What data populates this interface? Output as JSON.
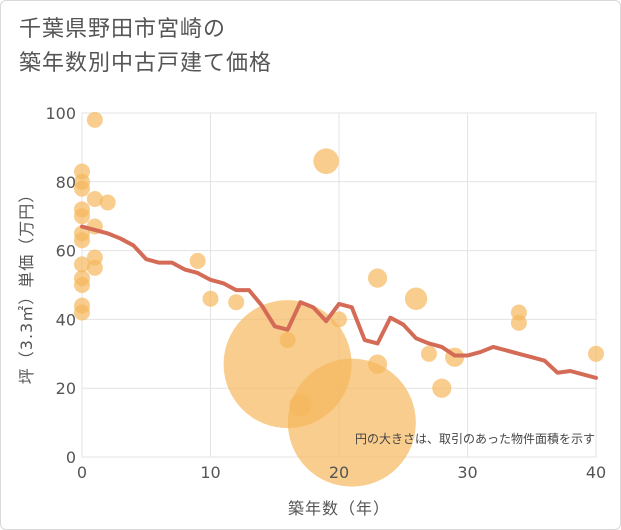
{
  "title_line1": "千葉県野田市宮崎の",
  "title_line2": "築年数別中古戸建て価格",
  "chart_data": {
    "type": "scatter",
    "xlabel": "築年数（年）",
    "ylabel": "坪（3.3㎡）単価（万円）",
    "xlim": [
      0,
      40
    ],
    "ylim": [
      0,
      100
    ],
    "xticks": [
      "0",
      "10",
      "20",
      "30",
      "40"
    ],
    "yticks": [
      "0",
      "20",
      "40",
      "60",
      "80",
      "100"
    ],
    "grid": true,
    "note": "円の大きさは、取引のあった物件面積を示す",
    "bubble_color": "#f5b85c",
    "line_color": "#d46b57",
    "points": [
      {
        "x": 1,
        "y": 98,
        "s": 1
      },
      {
        "x": 0,
        "y": 83,
        "s": 1
      },
      {
        "x": 0,
        "y": 80,
        "s": 1
      },
      {
        "x": 0,
        "y": 78,
        "s": 1
      },
      {
        "x": 1,
        "y": 75,
        "s": 1
      },
      {
        "x": 2,
        "y": 74,
        "s": 1
      },
      {
        "x": 0,
        "y": 72,
        "s": 1
      },
      {
        "x": 0,
        "y": 70,
        "s": 1
      },
      {
        "x": 1,
        "y": 67,
        "s": 1
      },
      {
        "x": 0,
        "y": 65,
        "s": 1
      },
      {
        "x": 0,
        "y": 63,
        "s": 1
      },
      {
        "x": 1,
        "y": 58,
        "s": 1
      },
      {
        "x": 0,
        "y": 56,
        "s": 1
      },
      {
        "x": 1,
        "y": 55,
        "s": 1
      },
      {
        "x": 0,
        "y": 52,
        "s": 1
      },
      {
        "x": 0,
        "y": 50,
        "s": 1
      },
      {
        "x": 0,
        "y": 44,
        "s": 1
      },
      {
        "x": 0,
        "y": 42,
        "s": 1
      },
      {
        "x": 9,
        "y": 57,
        "s": 1
      },
      {
        "x": 10,
        "y": 46,
        "s": 1
      },
      {
        "x": 12,
        "y": 45,
        "s": 1
      },
      {
        "x": 16,
        "y": 34,
        "s": 1
      },
      {
        "x": 16,
        "y": 27,
        "s": 8
      },
      {
        "x": 17,
        "y": 15,
        "s": 1.4
      },
      {
        "x": 19,
        "y": 86,
        "s": 1.6
      },
      {
        "x": 20,
        "y": 40,
        "s": 1
      },
      {
        "x": 21,
        "y": 10,
        "s": 8
      },
      {
        "x": 23,
        "y": 52,
        "s": 1.2
      },
      {
        "x": 23,
        "y": 27,
        "s": 1.2
      },
      {
        "x": 26,
        "y": 46,
        "s": 1.4
      },
      {
        "x": 27,
        "y": 30,
        "s": 1
      },
      {
        "x": 28,
        "y": 20,
        "s": 1.2
      },
      {
        "x": 29,
        "y": 29,
        "s": 1.2
      },
      {
        "x": 34,
        "y": 42,
        "s": 1
      },
      {
        "x": 34,
        "y": 39,
        "s": 1
      },
      {
        "x": 40,
        "y": 30,
        "s": 1
      }
    ],
    "trend": {
      "x": [
        0,
        1,
        2,
        3,
        4,
        5,
        6,
        7,
        8,
        9,
        10,
        11,
        12,
        13,
        14,
        15,
        16,
        17,
        18,
        19,
        20,
        21,
        22,
        23,
        24,
        25,
        26,
        27,
        28,
        29,
        30,
        31,
        32,
        33,
        34,
        35,
        36,
        37,
        38,
        39,
        40
      ],
      "y": [
        67,
        66,
        65,
        63.5,
        61.5,
        57.5,
        56.5,
        56.5,
        54.5,
        53.5,
        51.5,
        50.5,
        48.5,
        48.5,
        44,
        38,
        37,
        45,
        43.5,
        39.5,
        44.5,
        43.5,
        34,
        33,
        40.5,
        38.5,
        34.5,
        33,
        32,
        29.5,
        29.5,
        30.5,
        32,
        31,
        30,
        29,
        28,
        24.5,
        25,
        24,
        23
      ]
    }
  }
}
